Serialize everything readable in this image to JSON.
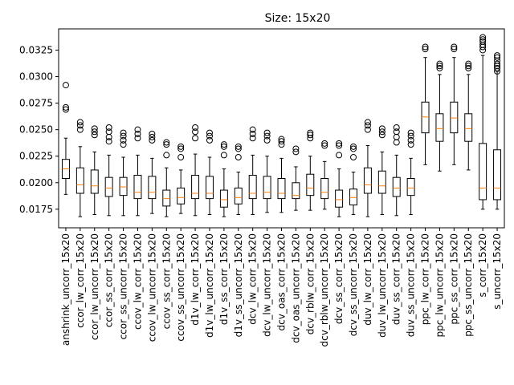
{
  "chart_data": {
    "type": "boxplot",
    "title": "Size: 15x20",
    "xlabel": "",
    "ylabel": "",
    "ylim": [
      0.01575,
      0.0345
    ],
    "yticks": [
      0.0175,
      0.02,
      0.0225,
      0.025,
      0.0275,
      0.03,
      0.0325
    ],
    "ytick_labels": [
      "0.0175",
      "0.0200",
      "0.0225",
      "0.0250",
      "0.0275",
      "0.0300",
      "0.0325"
    ],
    "grid": false,
    "legend": "none",
    "colors": {
      "box": "#000000",
      "median": "#ff7f0e",
      "flier": "#000000"
    },
    "categories": [
      "anshrink_uncorr_15x20",
      "ccor_lw_corr_15x20",
      "ccor_lw_uncorr_15x20",
      "ccor_ss_corr_15x20",
      "ccor_ss_uncorr_15x20",
      "ccov_lw_corr_15x20",
      "ccov_lw_uncorr_15x20",
      "ccov_ss_corr_15x20",
      "ccov_ss_uncorr_15x20",
      "d1v_lw_corr_15x20",
      "d1v_lw_uncorr_15x20",
      "d1v_ss_corr_15x20",
      "d1v_ss_uncorr_15x20",
      "dcv_lw_corr_15x20",
      "dcv_lw_uncorr_15x20",
      "dcv_oas_corr_15x20",
      "dcv_oas_uncorr_15x20",
      "dcv_rblw_corr_15x20",
      "dcv_rblw_uncorr_15x20",
      "dcv_ss_corr_15x20",
      "dcv_ss_uncorr_15x20",
      "duv_lw_corr_15x20",
      "duv_lw_uncorr_15x20",
      "duv_ss_corr_15x20",
      "duv_ss_uncorr_15x20",
      "ppc_lw_corr_15x20",
      "ppc_lw_uncorr_15x20",
      "ppc_ss_corr_15x20",
      "ppc_ss_uncorr_15x20",
      "s_corr_15x20",
      "s_uncorr_15x20"
    ],
    "boxes": [
      {
        "whislo": 0.0189,
        "q1": 0.0204,
        "med": 0.0213,
        "q3": 0.0222,
        "whishi": 0.0242,
        "fliers": [
          0.0292,
          0.0271,
          0.0269
        ]
      },
      {
        "whislo": 0.0168,
        "q1": 0.019,
        "med": 0.0198,
        "q3": 0.0214,
        "whishi": 0.0234,
        "fliers": [
          0.0257,
          0.0254,
          0.025
        ]
      },
      {
        "whislo": 0.017,
        "q1": 0.019,
        "med": 0.0197,
        "q3": 0.0212,
        "whishi": 0.0229,
        "fliers": [
          0.0251,
          0.0248,
          0.0245
        ]
      },
      {
        "whislo": 0.0169,
        "q1": 0.0187,
        "med": 0.0195,
        "q3": 0.0205,
        "whishi": 0.0226,
        "fliers": [
          0.0252,
          0.0248,
          0.0243,
          0.0239
        ]
      },
      {
        "whislo": 0.0169,
        "q1": 0.0188,
        "med": 0.0196,
        "q3": 0.0205,
        "whishi": 0.0224,
        "fliers": [
          0.0247,
          0.0244,
          0.024,
          0.0236
        ]
      },
      {
        "whislo": 0.0169,
        "q1": 0.0185,
        "med": 0.0191,
        "q3": 0.0207,
        "whishi": 0.0226,
        "fliers": [
          0.025,
          0.0246,
          0.0242
        ]
      },
      {
        "whislo": 0.0171,
        "q1": 0.0185,
        "med": 0.0191,
        "q3": 0.0206,
        "whishi": 0.0223,
        "fliers": [
          0.0246,
          0.0243,
          0.024
        ]
      },
      {
        "whislo": 0.0168,
        "q1": 0.0178,
        "med": 0.0185,
        "q3": 0.0193,
        "whishi": 0.0214,
        "fliers": [
          0.0238,
          0.0236,
          0.0226
        ]
      },
      {
        "whislo": 0.0171,
        "q1": 0.018,
        "med": 0.0186,
        "q3": 0.0195,
        "whishi": 0.0212,
        "fliers": [
          0.0234,
          0.0232,
          0.0224
        ]
      },
      {
        "whislo": 0.0169,
        "q1": 0.0185,
        "med": 0.019,
        "q3": 0.0207,
        "whishi": 0.0227,
        "fliers": [
          0.0252,
          0.0248,
          0.0242
        ]
      },
      {
        "whislo": 0.017,
        "q1": 0.0185,
        "med": 0.019,
        "q3": 0.0206,
        "whishi": 0.0224,
        "fliers": [
          0.0247,
          0.0244,
          0.024
        ]
      },
      {
        "whislo": 0.0168,
        "q1": 0.0177,
        "med": 0.0184,
        "q3": 0.0193,
        "whishi": 0.0213,
        "fliers": [
          0.0236,
          0.0234,
          0.0226
        ]
      },
      {
        "whislo": 0.017,
        "q1": 0.018,
        "med": 0.0186,
        "q3": 0.0195,
        "whishi": 0.021,
        "fliers": [
          0.0234,
          0.0232,
          0.0224
        ]
      },
      {
        "whislo": 0.017,
        "q1": 0.0185,
        "med": 0.019,
        "q3": 0.0207,
        "whishi": 0.0226,
        "fliers": [
          0.025,
          0.0246,
          0.0242
        ]
      },
      {
        "whislo": 0.0172,
        "q1": 0.0185,
        "med": 0.0191,
        "q3": 0.0206,
        "whishi": 0.0225,
        "fliers": [
          0.0247,
          0.0244,
          0.024
        ]
      },
      {
        "whislo": 0.0172,
        "q1": 0.0185,
        "med": 0.019,
        "q3": 0.0204,
        "whishi": 0.0223,
        "fliers": [
          0.0241,
          0.0239,
          0.0236
        ]
      },
      {
        "whislo": 0.0174,
        "q1": 0.0185,
        "med": 0.0188,
        "q3": 0.02,
        "whishi": 0.0215,
        "fliers": [
          0.0232,
          0.0229
        ]
      },
      {
        "whislo": 0.0174,
        "q1": 0.0188,
        "med": 0.0195,
        "q3": 0.0208,
        "whishi": 0.0225,
        "fliers": [
          0.0247,
          0.0245,
          0.0242
        ]
      },
      {
        "whislo": 0.0175,
        "q1": 0.0185,
        "med": 0.0191,
        "q3": 0.0204,
        "whishi": 0.022,
        "fliers": [
          0.0237,
          0.0235
        ]
      },
      {
        "whislo": 0.0168,
        "q1": 0.0177,
        "med": 0.0184,
        "q3": 0.0193,
        "whishi": 0.0213,
        "fliers": [
          0.0237,
          0.0235,
          0.0226
        ]
      },
      {
        "whislo": 0.017,
        "q1": 0.0179,
        "med": 0.0186,
        "q3": 0.0194,
        "whishi": 0.021,
        "fliers": [
          0.0234,
          0.0232,
          0.0224
        ]
      },
      {
        "whislo": 0.0168,
        "q1": 0.019,
        "med": 0.0198,
        "q3": 0.0214,
        "whishi": 0.0235,
        "fliers": [
          0.0257,
          0.0254,
          0.025
        ]
      },
      {
        "whislo": 0.017,
        "q1": 0.019,
        "med": 0.0197,
        "q3": 0.0211,
        "whishi": 0.0229,
        "fliers": [
          0.0251,
          0.0248,
          0.0245
        ]
      },
      {
        "whislo": 0.0169,
        "q1": 0.0187,
        "med": 0.0195,
        "q3": 0.0205,
        "whishi": 0.0226,
        "fliers": [
          0.0252,
          0.0248,
          0.0243,
          0.0238
        ]
      },
      {
        "whislo": 0.017,
        "q1": 0.0188,
        "med": 0.0195,
        "q3": 0.0204,
        "whishi": 0.0223,
        "fliers": [
          0.0247,
          0.0244,
          0.024,
          0.0236
        ]
      },
      {
        "whislo": 0.0217,
        "q1": 0.0247,
        "med": 0.0262,
        "q3": 0.0276,
        "whishi": 0.0318,
        "fliers": [
          0.0328,
          0.0326
        ]
      },
      {
        "whislo": 0.0211,
        "q1": 0.0239,
        "med": 0.0251,
        "q3": 0.0265,
        "whishi": 0.0302,
        "fliers": [
          0.0312,
          0.031,
          0.0308
        ]
      },
      {
        "whislo": 0.0217,
        "q1": 0.0247,
        "med": 0.0261,
        "q3": 0.0276,
        "whishi": 0.0318,
        "fliers": [
          0.0328,
          0.0326
        ]
      },
      {
        "whislo": 0.0212,
        "q1": 0.0239,
        "med": 0.0251,
        "q3": 0.0265,
        "whishi": 0.0302,
        "fliers": [
          0.0312,
          0.031,
          0.0308
        ]
      },
      {
        "whislo": 0.0175,
        "q1": 0.0184,
        "med": 0.0195,
        "q3": 0.0237,
        "whishi": 0.032,
        "fliers": [
          0.0337,
          0.0335,
          0.0333,
          0.033,
          0.0328,
          0.0325
        ]
      },
      {
        "whislo": 0.0175,
        "q1": 0.0184,
        "med": 0.0195,
        "q3": 0.0231,
        "whishi": 0.0305,
        "fliers": [
          0.032,
          0.0318,
          0.0315,
          0.0312,
          0.031,
          0.0308,
          0.0305
        ]
      }
    ]
  }
}
